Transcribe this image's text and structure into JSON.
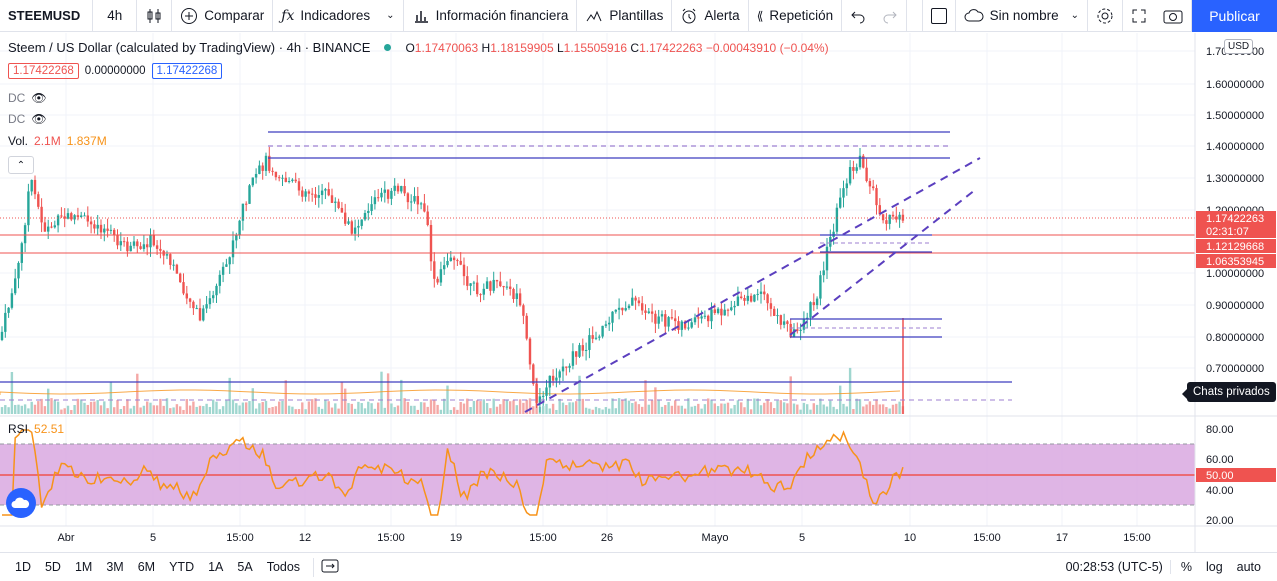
{
  "toolbar": {
    "symbol": "STEEMUSD",
    "interval": "4h",
    "compare": "Comparar",
    "indicators": "Indicadores",
    "financials": "Información financiera",
    "templates": "Plantillas",
    "alert": "Alerta",
    "replay": "Repetición",
    "layout_name": "Sin nombre",
    "publish": "Publicar"
  },
  "legend": {
    "title": "Steem / US Dollar (calculated by TradingView) · 4h · BINANCE",
    "open_k": "O",
    "open": "1.17470063",
    "high_k": "H",
    "high": "1.18159905",
    "low_k": "L",
    "low": "1.15505916",
    "close_k": "C",
    "close": "1.17422263",
    "change": "−0.00043910 (−0.04%)",
    "bid": "1.17422268",
    "spread": "0.00000000",
    "ask": "1.17422268"
  },
  "indicators": {
    "dc1": "DC",
    "dc2": "DC",
    "vol_label": "Vol.",
    "vol_value1": "2.1M",
    "vol_value2": "1.837M",
    "rsi_label": "RSI",
    "rsi_value": "52.51"
  },
  "price_axis": {
    "currency": "USD",
    "ticks": [
      {
        "label": "1.70000000",
        "y": 51
      },
      {
        "label": "1.60000000",
        "y": 84
      },
      {
        "label": "1.50000000",
        "y": 115
      },
      {
        "label": "1.40000000",
        "y": 146
      },
      {
        "label": "1.30000000",
        "y": 178
      },
      {
        "label": "1.20000000",
        "y": 210
      },
      {
        "label": "1.00000000",
        "y": 273
      },
      {
        "label": "0.90000000",
        "y": 305
      },
      {
        "label": "0.80000000",
        "y": 337
      },
      {
        "label": "0.70000000",
        "y": 368
      }
    ],
    "current_price": "1.17422263",
    "countdown": "02:31:07",
    "level1": "1.12129668",
    "level2": "1.06353945"
  },
  "rsi_axis": {
    "ticks": [
      {
        "label": "80.00",
        "y": 429
      },
      {
        "label": "60.00",
        "y": 459
      },
      {
        "label": "40.00",
        "y": 490
      },
      {
        "label": "20.00",
        "y": 520
      }
    ],
    "current": "50.00"
  },
  "time_axis": [
    {
      "label": "Abr",
      "x": 66
    },
    {
      "label": "5",
      "x": 153
    },
    {
      "label": "15:00",
      "x": 240
    },
    {
      "label": "12",
      "x": 305
    },
    {
      "label": "15:00",
      "x": 391
    },
    {
      "label": "19",
      "x": 456
    },
    {
      "label": "15:00",
      "x": 543
    },
    {
      "label": "26",
      "x": 607
    },
    {
      "label": "Mayo",
      "x": 715
    },
    {
      "label": "5",
      "x": 802
    },
    {
      "label": "10",
      "x": 910
    },
    {
      "label": "15:00",
      "x": 987
    },
    {
      "label": "17",
      "x": 1062
    },
    {
      "label": "15:00",
      "x": 1137
    }
  ],
  "bottom": {
    "ranges": [
      "1D",
      "5D",
      "1M",
      "3M",
      "6M",
      "YTD",
      "1A",
      "5A",
      "Todos"
    ],
    "clock": "00:28:53 (UTC-5)",
    "percent": "%",
    "log": "log",
    "auto": "auto"
  },
  "tooltip": "Chats privados",
  "colors": {
    "accent": "#2962ff",
    "up": "#26a69a",
    "down": "#ef5350",
    "rsi_fill": "#d9a8e0",
    "rsi_line": "#f7931a",
    "drawing": "#3f3fbf"
  }
}
